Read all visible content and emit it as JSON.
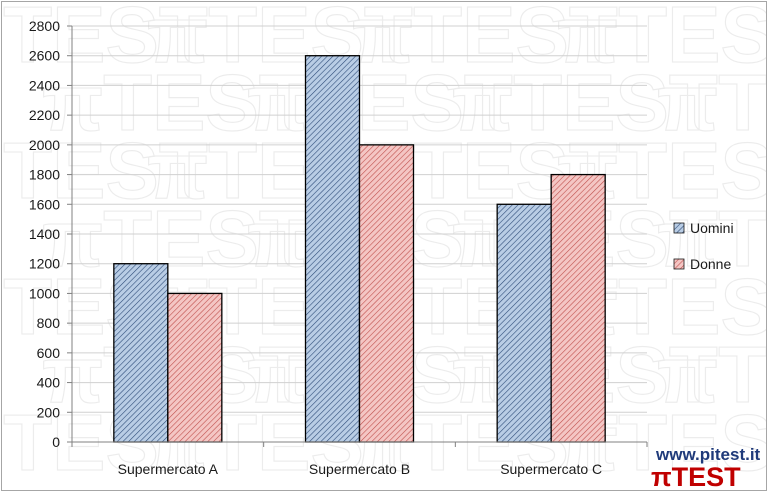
{
  "chart_data": {
    "type": "bar",
    "title": "",
    "xlabel": "",
    "ylabel": "",
    "categories": [
      "Supermercato A",
      "Supermercato B",
      "Supermercato C"
    ],
    "series": [
      {
        "name": "Uomini",
        "values": [
          1200,
          2600,
          1600
        ],
        "color": "#b9cde5",
        "stripe": "#2f4d7a"
      },
      {
        "name": "Donne",
        "values": [
          1000,
          2000,
          1800
        ],
        "color": "#f4c6c4",
        "stripe": "#c0504d"
      }
    ],
    "ylim": [
      0,
      2800
    ],
    "ytick_step": 200,
    "grid": true,
    "legend": "right"
  },
  "branding": {
    "website": "www.pitest.it",
    "logo_text": "πTEST",
    "website_color": "#1f3a7a",
    "logo_color": "#c00000",
    "watermark_text": "πTEST"
  }
}
